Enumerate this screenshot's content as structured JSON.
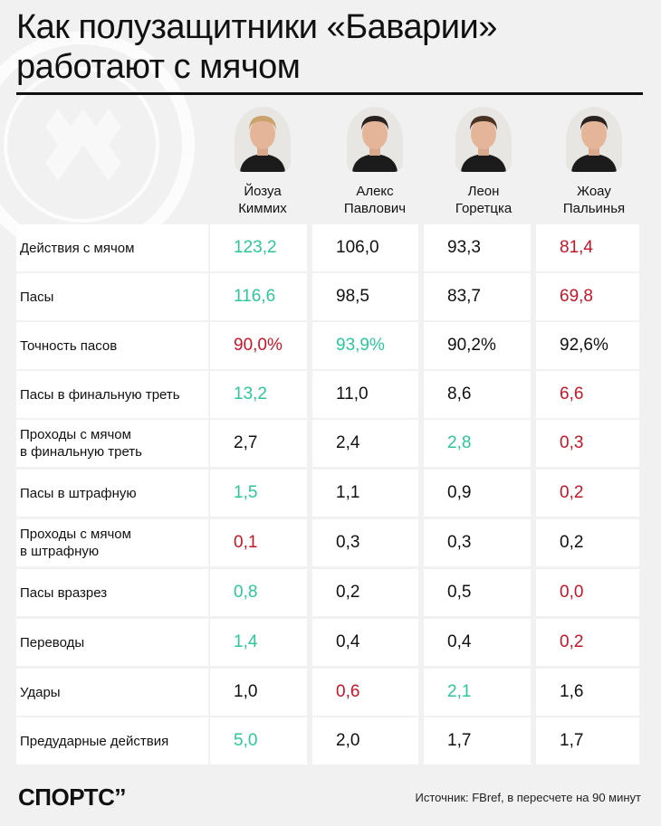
{
  "title_line1": "Как полузащитники «Баварии»",
  "title_line2": "работают с мячом",
  "colors": {
    "green": "#2bc79b",
    "red": "#c71527",
    "text": "#111111",
    "background": "#f1f1f1"
  },
  "players": [
    {
      "first": "Йозуа",
      "last": "Киммих",
      "photo_icon": "player-photo"
    },
    {
      "first": "Алекс",
      "last": "Павлович",
      "photo_icon": "player-photo"
    },
    {
      "first": "Леон",
      "last": "Горетцка",
      "photo_icon": "player-photo"
    },
    {
      "first": "Жоау",
      "last": "Пальинья",
      "photo_icon": "player-photo"
    }
  ],
  "rows": [
    {
      "label": [
        "Действия с мячом"
      ],
      "values": [
        {
          "v": "123,2",
          "c": "green"
        },
        {
          "v": "106,0",
          "c": "black"
        },
        {
          "v": "93,3",
          "c": "black"
        },
        {
          "v": "81,4",
          "c": "red"
        }
      ]
    },
    {
      "label": [
        "Пасы"
      ],
      "values": [
        {
          "v": "116,6",
          "c": "green"
        },
        {
          "v": "98,5",
          "c": "black"
        },
        {
          "v": "83,7",
          "c": "black"
        },
        {
          "v": "69,8",
          "c": "red"
        }
      ]
    },
    {
      "label": [
        "Точность пасов"
      ],
      "values": [
        {
          "v": "90,0%",
          "c": "red"
        },
        {
          "v": "93,9%",
          "c": "green"
        },
        {
          "v": "90,2%",
          "c": "black"
        },
        {
          "v": "92,6%",
          "c": "black"
        }
      ]
    },
    {
      "label": [
        "Пасы в финальную треть"
      ],
      "values": [
        {
          "v": "13,2",
          "c": "green"
        },
        {
          "v": "11,0",
          "c": "black"
        },
        {
          "v": "8,6",
          "c": "black"
        },
        {
          "v": "6,6",
          "c": "red"
        }
      ]
    },
    {
      "label": [
        "Проходы с мячом",
        "в финальную треть"
      ],
      "values": [
        {
          "v": "2,7",
          "c": "black"
        },
        {
          "v": "2,4",
          "c": "black"
        },
        {
          "v": "2,8",
          "c": "green"
        },
        {
          "v": "0,3",
          "c": "red"
        }
      ]
    },
    {
      "label": [
        "Пасы в штрафную"
      ],
      "values": [
        {
          "v": "1,5",
          "c": "green"
        },
        {
          "v": "1,1",
          "c": "black"
        },
        {
          "v": "0,9",
          "c": "black"
        },
        {
          "v": "0,2",
          "c": "red"
        }
      ]
    },
    {
      "label": [
        "Проходы с мячом",
        "в штрафную"
      ],
      "values": [
        {
          "v": "0,1",
          "c": "red"
        },
        {
          "v": "0,3",
          "c": "black"
        },
        {
          "v": "0,3",
          "c": "black"
        },
        {
          "v": "0,2",
          "c": "black"
        }
      ]
    },
    {
      "label": [
        "Пасы вразрез"
      ],
      "values": [
        {
          "v": "0,8",
          "c": "green"
        },
        {
          "v": "0,2",
          "c": "black"
        },
        {
          "v": "0,5",
          "c": "black"
        },
        {
          "v": "0,0",
          "c": "red"
        }
      ]
    },
    {
      "label": [
        "Переводы"
      ],
      "values": [
        {
          "v": "1,4",
          "c": "green"
        },
        {
          "v": "0,4",
          "c": "black"
        },
        {
          "v": "0,4",
          "c": "black"
        },
        {
          "v": "0,2",
          "c": "red"
        }
      ]
    },
    {
      "label": [
        "Удары"
      ],
      "values": [
        {
          "v": "1,0",
          "c": "black"
        },
        {
          "v": "0,6",
          "c": "red"
        },
        {
          "v": "2,1",
          "c": "green"
        },
        {
          "v": "1,6",
          "c": "black"
        }
      ]
    },
    {
      "label": [
        "Предударные действия"
      ],
      "values": [
        {
          "v": "5,0",
          "c": "green"
        },
        {
          "v": "2,0",
          "c": "black"
        },
        {
          "v": "1,7",
          "c": "black"
        },
        {
          "v": "1,7",
          "c": "black"
        }
      ]
    }
  ],
  "footer": {
    "logo": "СПОРТС’’",
    "source": "Источник: FBref, в пересчете на 90 минут"
  }
}
